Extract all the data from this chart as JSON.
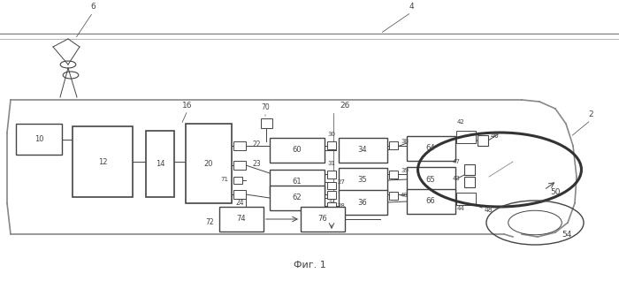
{
  "bg_color": "#f5f5f5",
  "fig_label": "Фиг. 1",
  "line_color": "#555555",
  "box_edge_color": "#333333"
}
